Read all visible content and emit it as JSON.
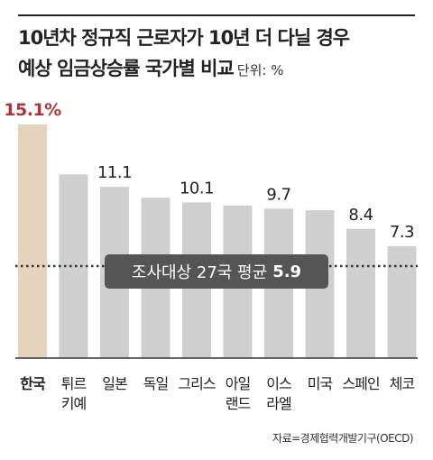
{
  "title_line1": "10년차 정규직 근로자가 10년 더 다닐 경우",
  "title_line2": "예상 임금상승률 국가별 비교",
  "unit": "단위: %",
  "source": "자료=경제협력개발기구(OECD)",
  "average": {
    "label": "조사대상 27국 평균",
    "value": "5.9"
  },
  "colors": {
    "highlight_bar": "#e5d3bd",
    "bar": "#cfcfcf",
    "highlight_text": "#b2343a",
    "avg_box": "#555555"
  },
  "chart_data": {
    "type": "bar",
    "categories": [
      "한국",
      "튀르키예",
      "일본",
      "독일",
      "그리스",
      "아일랜드",
      "이스라엘",
      "미국",
      "스페인",
      "체코"
    ],
    "category_lines": [
      [
        "한국"
      ],
      [
        "튀르",
        "키예"
      ],
      [
        "일본"
      ],
      [
        "독일"
      ],
      [
        "그리스"
      ],
      [
        "아일",
        "랜드"
      ],
      [
        "이스",
        "라엘"
      ],
      [
        "미국"
      ],
      [
        "스페인"
      ],
      [
        "체코"
      ]
    ],
    "values": [
      15.1,
      11.9,
      11.1,
      10.4,
      10.1,
      9.9,
      9.7,
      9.6,
      8.4,
      7.3
    ],
    "data_labels": [
      "15.1%",
      null,
      "11.1",
      null,
      "10.1",
      null,
      "9.7",
      null,
      "8.4",
      "7.3"
    ],
    "highlight_index": 0,
    "average": 5.9,
    "ylim": [
      0,
      15.1
    ],
    "grid": false,
    "title": "",
    "xlabel": "",
    "ylabel": ""
  }
}
